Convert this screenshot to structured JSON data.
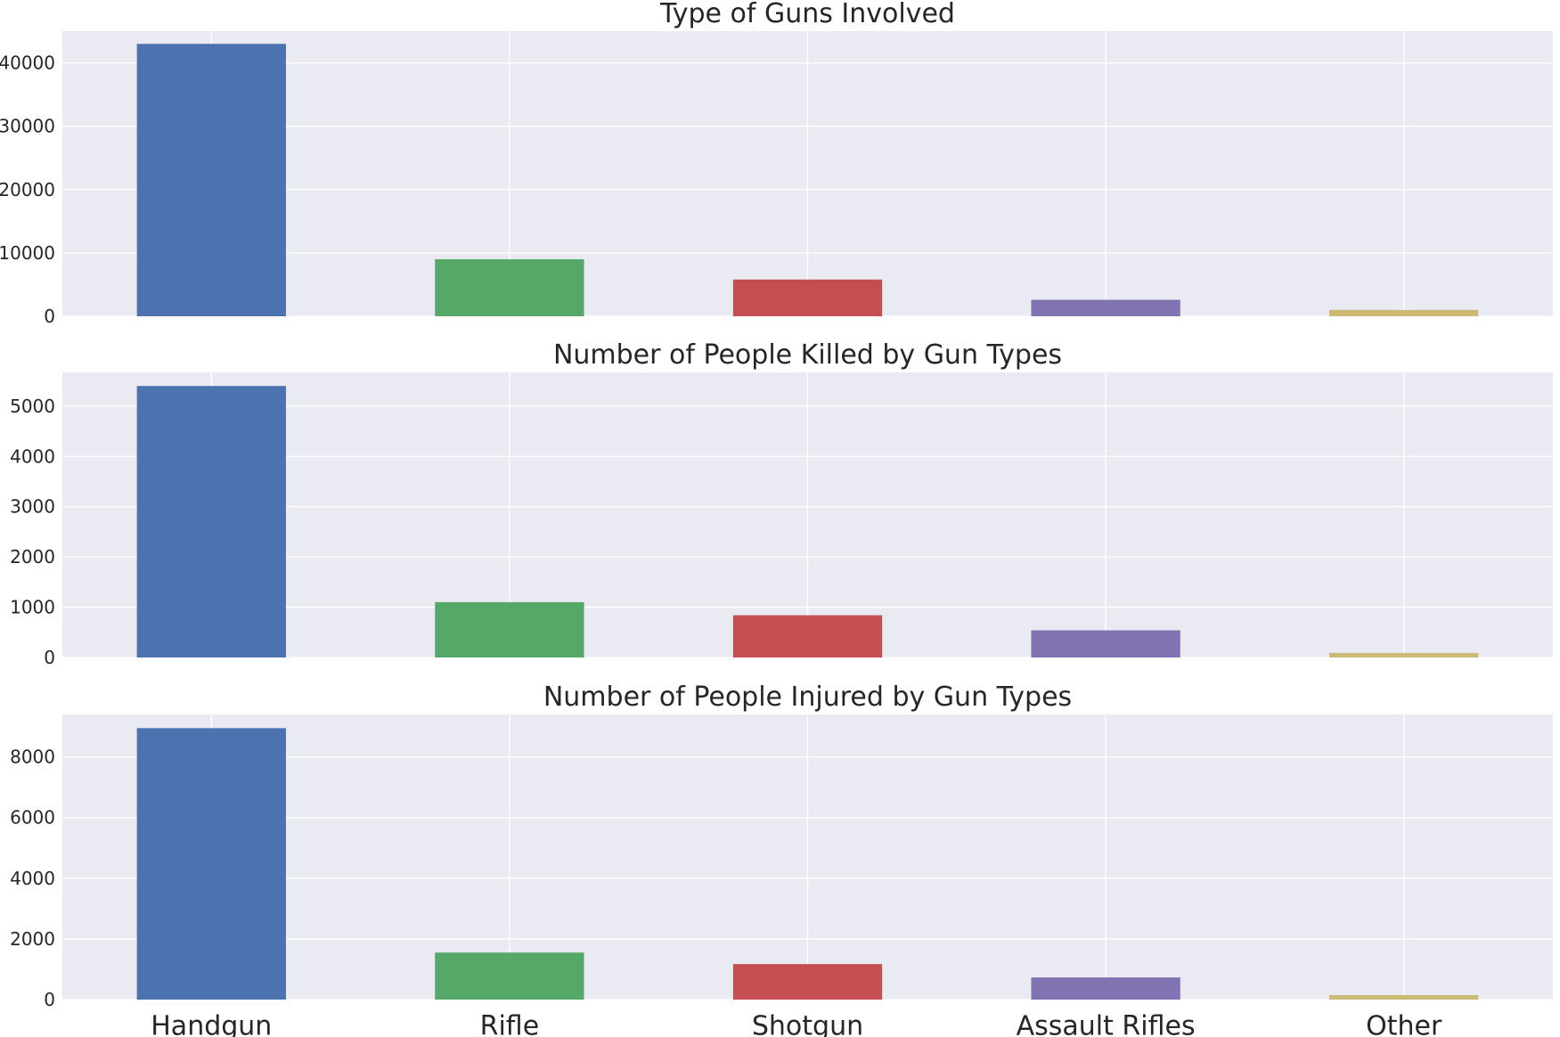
{
  "colors": {
    "background": "#ffffff",
    "plot_background": "#eaeaf2",
    "grid": "#ffffff",
    "text": "#262626",
    "bars": [
      "#4c72b0",
      "#55a868",
      "#c44e52",
      "#8172b2",
      "#ccb974"
    ]
  },
  "chart_data": [
    {
      "type": "bar",
      "title": "Type of Guns Involved",
      "categories": [
        "Handgun",
        "Rifle",
        "Shotgun",
        "Assault Rifles",
        "Other"
      ],
      "values": [
        43000,
        9000,
        5800,
        2600,
        1000
      ],
      "ylim": [
        0,
        45000
      ],
      "yticks": [
        0,
        10000,
        20000,
        30000,
        40000
      ],
      "show_xtick_labels": false,
      "grid": true,
      "xlabel": "",
      "ylabel": ""
    },
    {
      "type": "bar",
      "title": "Number of People Killed by Gun Types",
      "categories": [
        "Handgun",
        "Rifle",
        "Shotgun",
        "Assault Rifles",
        "Other"
      ],
      "values": [
        5400,
        1100,
        840,
        540,
        90
      ],
      "ylim": [
        0,
        5670
      ],
      "yticks": [
        0,
        1000,
        2000,
        3000,
        4000,
        5000
      ],
      "show_xtick_labels": false,
      "grid": true,
      "xlabel": "",
      "ylabel": ""
    },
    {
      "type": "bar",
      "title": "Number of People Injured by Gun Types",
      "categories": [
        "Handgun",
        "Rifle",
        "Shotgun",
        "Assault Rifles",
        "Other"
      ],
      "values": [
        8950,
        1550,
        1170,
        730,
        150
      ],
      "ylim": [
        0,
        9400
      ],
      "yticks": [
        0,
        2000,
        4000,
        6000,
        8000
      ],
      "show_xtick_labels": true,
      "grid": true,
      "xlabel": "",
      "ylabel": ""
    }
  ]
}
